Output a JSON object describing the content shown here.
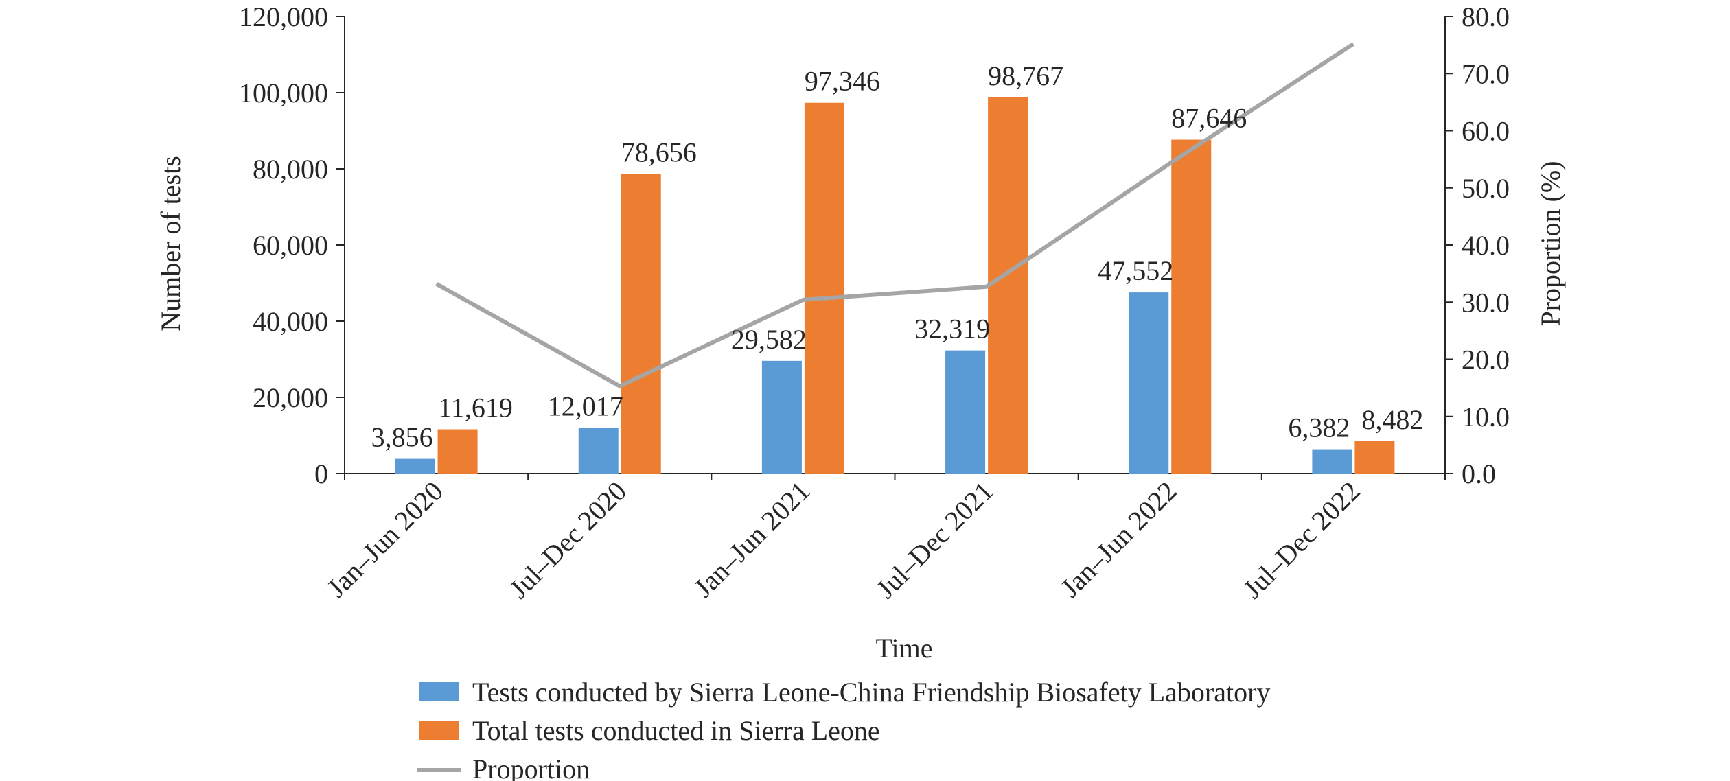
{
  "chart_data": {
    "type": "bar",
    "categories": [
      "Jan–Jun 2020",
      "Jul–Dec 2020",
      "Jan–Jun 2021",
      "Jul–Dec 2021",
      "Jan–Jun 2022",
      "Jul–Dec 2022"
    ],
    "series": [
      {
        "name": "Tests conducted by Sierra Leone-China Friendship Biosafety Laboratory",
        "type": "bar",
        "axis": "left",
        "color": "#5b9bd5",
        "values": [
          3856,
          12017,
          29582,
          32319,
          47552,
          6382
        ],
        "labels": [
          "3,856",
          "12,017",
          "29,582",
          "32,319",
          "47,552",
          "6,382"
        ]
      },
      {
        "name": "Total tests conducted in Sierra Leone",
        "type": "bar",
        "axis": "left",
        "color": "#ed7d31",
        "values": [
          11619,
          78656,
          97346,
          98767,
          87646,
          8482
        ],
        "labels": [
          "11,619",
          "78,656",
          "97,346",
          "98,767",
          "87,646",
          "8,482"
        ]
      },
      {
        "name": "Proportion",
        "type": "line",
        "axis": "right",
        "color": "#a5a5a5",
        "values": [
          33.2,
          15.3,
          30.4,
          32.7,
          54.3,
          75.2
        ]
      }
    ],
    "xlabel": "Time",
    "ylabel": "Number of tests",
    "y2label": "Proportion (%)",
    "ylim": [
      0,
      120000
    ],
    "y2lim": [
      0,
      80
    ],
    "yticks": [
      "0",
      "20,000",
      "40,000",
      "60,000",
      "80,000",
      "100,000",
      "120,000"
    ],
    "y2ticks": [
      "0.0",
      "10.0",
      "20.0",
      "30.0",
      "40.0",
      "50.0",
      "60.0",
      "70.0",
      "80.0"
    ],
    "grid": false,
    "legend_position": "bottom"
  }
}
